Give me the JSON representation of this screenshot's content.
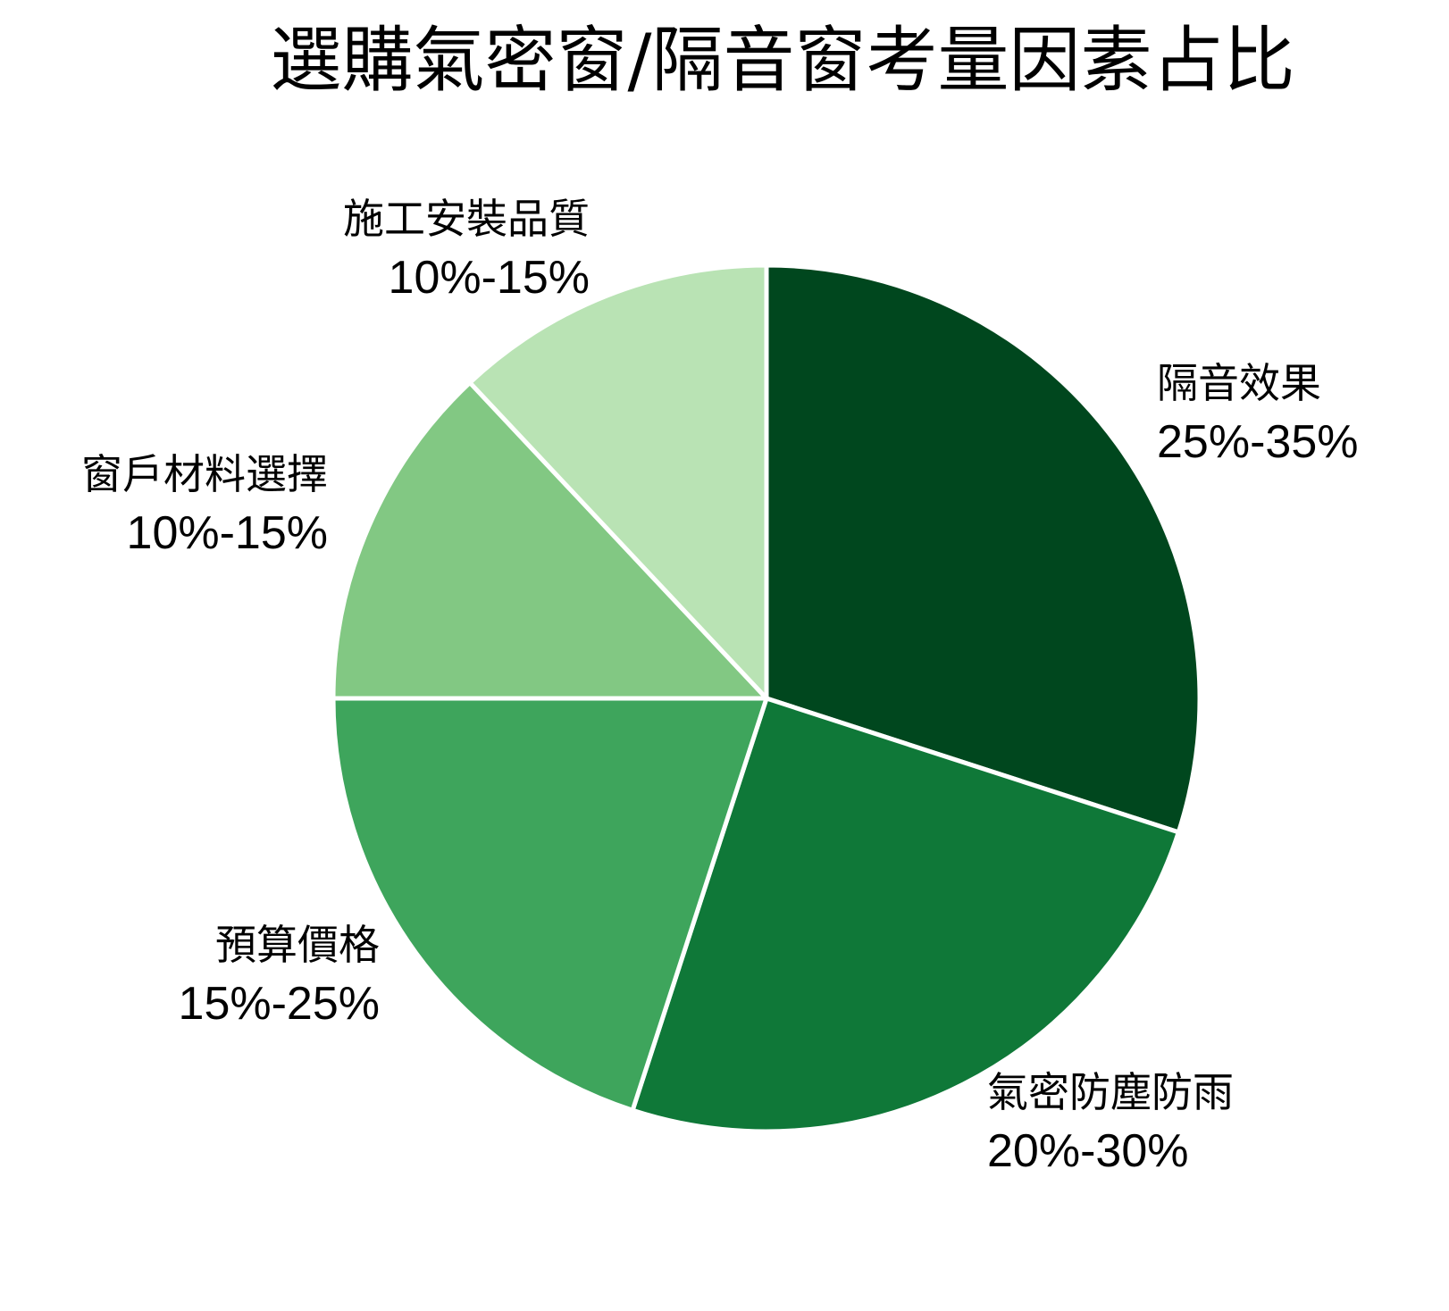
{
  "chart_data": {
    "type": "pie",
    "title": "選購氣密窗/隔音窗考量因素占比",
    "start_angle": "12 o'clock",
    "direction": "clockwise",
    "categories": [
      "隔音效果",
      "氣密防塵防雨",
      "預算價格",
      "窗戶材料選擇",
      "施工安裝品質"
    ],
    "ranges": [
      "25%-35%",
      "20%-30%",
      "15%-25%",
      "10%-15%",
      "10%-15%"
    ],
    "values": [
      30,
      25,
      20,
      13,
      12
    ],
    "colors": [
      "#00471e",
      "#0f7838",
      "#3ea55c",
      "#82c883",
      "#b9e3b4"
    ],
    "legend": "none (direct labels)"
  },
  "slices": [
    {
      "name": "隔音效果",
      "range": "25%-35%"
    },
    {
      "name": "氣密防塵防雨",
      "range": "20%-30%"
    },
    {
      "name": "預算價格",
      "range": "15%-25%"
    },
    {
      "name": "窗戶材料選擇",
      "range": "10%-15%"
    },
    {
      "name": "施工安裝品質",
      "range": "10%-15%"
    }
  ]
}
